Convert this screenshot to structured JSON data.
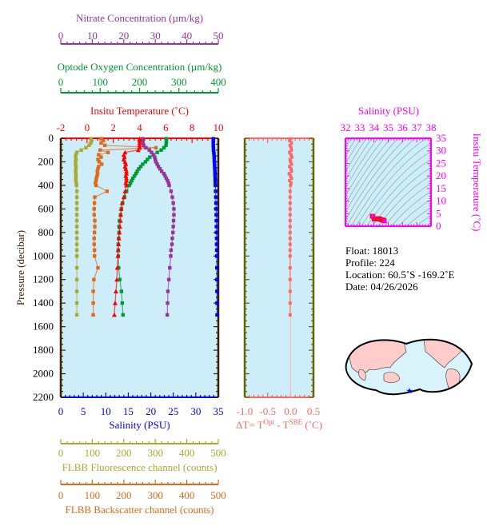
{
  "colors": {
    "plot_bg": "#cdeef8",
    "pressure_axis": "#3a1f00",
    "temperature": "#ff0000",
    "salinity": "#0000ff",
    "oxygen": "#009933",
    "nitrate": "#993399",
    "fluorescence": "#aaaa33",
    "backscatter": "#e06a1a",
    "delta_t": "#ff6666",
    "delta_axis": "#666600",
    "ts": "#ff00ff",
    "map_land": "#ffcccc",
    "map_ocean": "#d9f3fb",
    "float_marker": "#0000ff"
  },
  "chart_data": [
    {
      "type": "line",
      "ylabel": "Pressure (decibar)",
      "ylim": [
        2200,
        0
      ],
      "yticks": [
        "0",
        "200",
        "400",
        "600",
        "800",
        "1000",
        "1200",
        "1400",
        "1600",
        "1800",
        "2000",
        "2200"
      ],
      "grid": false,
      "axes": {
        "nitrate": {
          "label": "Nitrate Concentration (µm/kg)",
          "range": [
            0,
            50
          ],
          "ticks": [
            "0",
            "10",
            "20",
            "30",
            "40",
            "50"
          ],
          "position": "top"
        },
        "oxygen": {
          "label": "Optode Oxygen Concentration (µm/kg)",
          "range": [
            0,
            400
          ],
          "ticks": [
            "0",
            "100",
            "200",
            "300",
            "400"
          ],
          "position": "top"
        },
        "temperature": {
          "label": "Insitu Temperature (˚C)",
          "range": [
            -2,
            10
          ],
          "ticks": [
            "-2",
            "0",
            "2",
            "4",
            "6",
            "8",
            "10"
          ],
          "position": "top"
        },
        "salinity": {
          "label": "Salinity (PSU)",
          "range": [
            0,
            35
          ],
          "ticks": [
            "0",
            "5",
            "10",
            "15",
            "20",
            "25",
            "30",
            "35"
          ],
          "position": "bottom"
        },
        "fluorescence": {
          "label": "FLBB Fluorescence channel (counts)",
          "range": [
            0,
            500
          ],
          "ticks": [
            "0",
            "100",
            "200",
            "300",
            "400",
            "500"
          ],
          "position": "bottom"
        },
        "backscatter": {
          "label": "FLBB Backscatter channel (counts)",
          "range": [
            0,
            500
          ],
          "ticks": [
            "0",
            "100",
            "200",
            "300",
            "400",
            "500"
          ],
          "position": "bottom"
        }
      },
      "pressure": [
        4,
        20,
        40,
        60,
        80,
        100,
        120,
        140,
        160,
        180,
        200,
        220,
        240,
        260,
        280,
        300,
        320,
        340,
        360,
        380,
        400,
        450,
        500,
        550,
        600,
        650,
        700,
        750,
        800,
        850,
        900,
        950,
        1000,
        1100,
        1200,
        1300,
        1400,
        1500
      ],
      "series": [
        {
          "key": "fluorescence",
          "values": [
            96,
            98,
            95,
            90,
            80,
            65,
            51,
            48,
            47,
            48,
            47,
            47,
            48,
            48,
            47,
            48,
            48,
            48,
            48,
            49,
            50,
            51,
            51,
            51,
            51,
            51,
            51,
            51,
            51,
            51,
            51,
            51,
            51,
            51,
            51,
            51,
            51,
            51
          ]
        },
        {
          "key": "backscatter",
          "values": [
            129,
            135,
            128,
            140,
            302,
            125,
            150,
            120,
            128,
            118,
            122,
            130,
            120,
            118,
            116,
            117,
            115,
            113,
            112,
            110,
            112,
            147,
            108,
            107,
            106,
            106,
            108,
            108,
            107,
            106,
            106,
            107,
            107,
            118,
            105,
            103,
            103,
            103
          ]
        },
        {
          "key": "oxygen",
          "values": [
            268,
            268,
            268,
            267,
            262,
            255,
            245,
            235,
            226,
            220,
            215,
            208,
            203,
            198,
            194,
            191,
            187,
            183,
            180,
            177,
            174,
            167,
            162,
            157,
            154,
            152,
            149,
            148,
            148,
            147,
            146,
            146,
            146,
            147,
            150,
            154,
            156,
            158
          ]
        },
        {
          "key": "nitrate",
          "values": [
            26.0,
            26.0,
            26.1,
            26.3,
            27.0,
            28.1,
            28.8,
            29.4,
            29.8,
            30.0,
            30.2,
            30.6,
            31.0,
            31.5,
            32.0,
            32.7,
            33.1,
            33.5,
            33.9,
            34.2,
            34.4,
            35.0,
            35.4,
            35.7,
            35.9,
            35.9,
            35.8,
            35.7,
            35.6,
            35.4,
            35.3,
            35.0,
            34.9,
            34.6,
            34.3,
            34.0,
            33.9,
            33.8
          ]
        },
        {
          "key": "temperature",
          "values": [
            4.0,
            4.0,
            4.0,
            4.0,
            4.0,
            3.9,
            2.9,
            2.8,
            2.85,
            2.8,
            2.9,
            2.95,
            2.9,
            2.95,
            3.0,
            3.0,
            2.95,
            3.0,
            3.0,
            2.95,
            3.0,
            2.9,
            2.8,
            2.67,
            2.6,
            2.57,
            2.55,
            2.5,
            2.47,
            2.43,
            2.4,
            2.37,
            2.35,
            2.3,
            2.27,
            2.2,
            2.14,
            2.08
          ]
        },
        {
          "key": "salinity",
          "values": [
            33.88,
            33.88,
            33.88,
            33.89,
            33.9,
            33.93,
            34.0,
            34.05,
            34.08,
            34.1,
            34.13,
            34.16,
            34.19,
            34.22,
            34.25,
            34.27,
            34.29,
            34.31,
            34.33,
            34.34,
            34.36,
            34.4,
            34.44,
            34.48,
            34.51,
            34.54,
            34.56,
            34.58,
            34.6,
            34.62,
            34.63,
            34.65,
            34.66,
            34.68,
            34.7,
            34.71,
            34.72,
            34.73
          ]
        }
      ]
    },
    {
      "type": "line",
      "xlabel_parts": {
        "prefix": "ΔT= T",
        "sup1": "Opt",
        "mid": " - T",
        "sup2": "SBE",
        "suffix": " (˚C)"
      },
      "xlim": [
        -1.0,
        0.5
      ],
      "xticks": [
        "-1.0",
        "-0.5",
        "0.0",
        "0.5"
      ],
      "ylim": [
        2200,
        0
      ],
      "values": [
        0.0,
        -0.02,
        0.02,
        -0.01,
        0.01,
        0.02,
        -0.02,
        0.01,
        0.03,
        -0.01,
        0.0,
        0.02,
        -0.02,
        0.01,
        0.02,
        -0.03,
        0.0,
        0.02,
        -0.02,
        0.01,
        0.0,
        -0.01,
        -0.01,
        -0.01,
        -0.01,
        -0.01,
        -0.01,
        -0.01,
        -0.01,
        -0.01,
        -0.01,
        -0.01,
        -0.01,
        -0.01,
        -0.01,
        -0.01,
        -0.01,
        -0.01
      ]
    },
    {
      "type": "scatter",
      "xlabel": "Salinity (PSU)",
      "ylabel": "Insitu Temperature (˚C)",
      "xlim": [
        32,
        38
      ],
      "ylim": [
        0,
        35
      ],
      "xticks": [
        "32",
        "33",
        "34",
        "35",
        "36",
        "37",
        "38"
      ],
      "yticks": [
        "0",
        "5",
        "10",
        "15",
        "20",
        "25",
        "30",
        "35"
      ],
      "points": "salinity vs temperature of profile"
    }
  ],
  "info": {
    "float": "Float:  18013",
    "profile": "Profile:  224",
    "location": "Location:  60.5˚S  -169.2˚E",
    "date": "Date:  04/26/2026"
  },
  "map": {
    "marker_icon": "star-icon"
  }
}
